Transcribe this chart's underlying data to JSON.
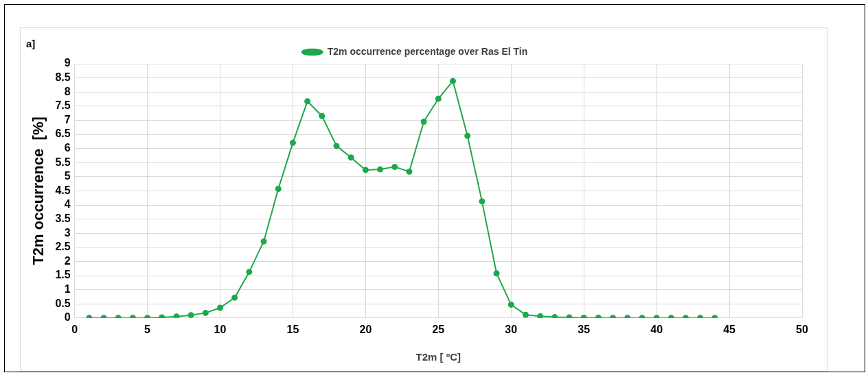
{
  "chart_data": {
    "type": "line",
    "xlabel": "T2m [ ºC]",
    "ylabel": "T2m occurrence  [%]",
    "annotations": [
      "a]"
    ],
    "x": [
      1,
      2,
      3,
      4,
      5,
      6,
      7,
      8,
      9,
      10,
      11,
      12,
      13,
      14,
      15,
      16,
      17,
      18,
      19,
      20,
      21,
      22,
      23,
      24,
      25,
      26,
      27,
      28,
      29,
      30,
      31,
      32,
      33,
      34,
      35,
      36,
      37,
      38,
      39,
      40,
      41,
      42,
      43,
      44
    ],
    "series": [
      {
        "name": "T2m occurrence percentage over Ras El Tin",
        "color": "#1ea84a",
        "values": [
          0,
          0,
          0,
          0,
          0,
          0.02,
          0.05,
          0.1,
          0.18,
          0.36,
          0.72,
          1.63,
          2.71,
          4.57,
          6.2,
          7.67,
          7.15,
          6.09,
          5.68,
          5.24,
          5.26,
          5.35,
          5.18,
          6.95,
          7.76,
          8.39,
          6.45,
          4.13,
          1.58,
          0.47,
          0.11,
          0.06,
          0.03,
          0.02,
          0.01,
          0.01,
          0,
          0,
          0,
          0,
          0,
          0,
          0,
          0
        ]
      }
    ],
    "xlim": [
      0,
      50
    ],
    "xticks": [
      0,
      5,
      10,
      15,
      20,
      25,
      30,
      35,
      40,
      45,
      50
    ],
    "ylim": [
      0,
      9
    ],
    "yticks": [
      0,
      0.5,
      1,
      1.5,
      2,
      2.5,
      3,
      3.5,
      4,
      4.5,
      5,
      5.5,
      6,
      6.5,
      7,
      7.5,
      8,
      8.5,
      9
    ],
    "grid": true,
    "legend": "top",
    "marker": "circle",
    "line_style": "solid"
  }
}
